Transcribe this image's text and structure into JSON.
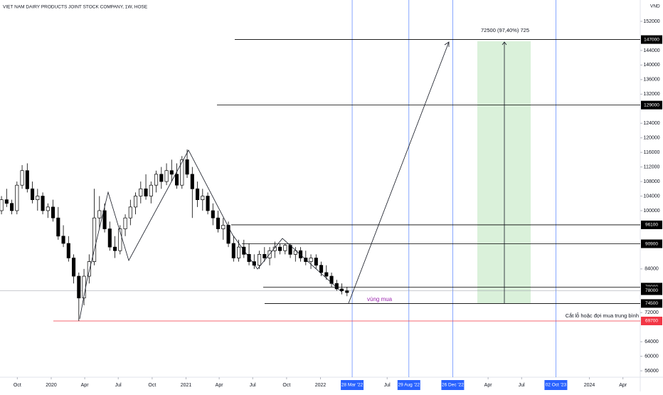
{
  "chart_data": {
    "type": "candlestick",
    "title": "VIET NAM DAIRY PRODUCTS JOINT STOCK COMPANY, 1W, HOSE",
    "currency": "VND",
    "up_color": "#ffffff",
    "down_color": "#000000",
    "xlim": [
      "2019-08-15",
      "2024-05-18"
    ],
    "ylim": [
      54250,
      157865
    ],
    "yticks": [
      152000,
      144000,
      140000,
      136000,
      132000,
      124000,
      120000,
      116000,
      112000,
      108000,
      104000,
      100000,
      84000,
      72000,
      64000,
      60000,
      56000
    ],
    "xticks": [
      {
        "value": "2019-10-01",
        "label": "Oct"
      },
      {
        "value": "2020-01-01",
        "label": "2020"
      },
      {
        "value": "2020-04-01",
        "label": "Apr"
      },
      {
        "value": "2020-07-01",
        "label": "Jul"
      },
      {
        "value": "2020-10-01",
        "label": "Oct"
      },
      {
        "value": "2021-01-01",
        "label": "2021"
      },
      {
        "value": "2021-04-01",
        "label": "Apr"
      },
      {
        "value": "2021-07-01",
        "label": "Jul"
      },
      {
        "value": "2021-10-01",
        "label": "Oct"
      },
      {
        "value": "2022-01-01",
        "label": "2022"
      },
      {
        "value": "2022-07-01",
        "label": "Jul"
      },
      {
        "value": "2023-04-01",
        "label": "Apr"
      },
      {
        "value": "2023-07-01",
        "label": "Jul"
      },
      {
        "value": "2024-01-01",
        "label": "2024"
      },
      {
        "value": "2024-04-01",
        "label": "Apr"
      }
    ],
    "date_markers": [
      {
        "value": "2022-03-28",
        "label": "28 Mar '22"
      },
      {
        "value": "2022-08-29",
        "label": "29 Aug '22"
      },
      {
        "value": "2022-12-26",
        "label": "26 Dec '22"
      },
      {
        "value": "2023-10-02",
        "label": "02 Oct '23"
      }
    ],
    "levels": [
      {
        "value": 147000,
        "color": "#000000"
      },
      {
        "value": 129000,
        "color": "#000000"
      },
      {
        "value": 96100,
        "color": "#000000"
      },
      {
        "value": 90900,
        "color": "#000000"
      },
      {
        "value": 79000,
        "color": "#000000"
      },
      {
        "value": 78000,
        "color": "#000000"
      },
      {
        "value": 74500,
        "color": "#000000"
      },
      {
        "value": 69700,
        "color": "#f23645"
      }
    ],
    "annotations": {
      "target": "72500 (97,40%) 725",
      "buy_zone": "vùng mua",
      "stop_loss": "Cắt lỗ hoặc đợi mua trung bình"
    },
    "candles": [
      [
        "2019-08-19",
        100000,
        104000,
        99000,
        103000
      ],
      [
        "2019-09-02",
        103000,
        106000,
        101000,
        102000
      ],
      [
        "2019-09-16",
        102000,
        103000,
        99000,
        100000
      ],
      [
        "2019-09-30",
        100000,
        108000,
        99000,
        107000
      ],
      [
        "2019-10-14",
        107000,
        112500,
        106000,
        111000
      ],
      [
        "2019-10-28",
        111000,
        113000,
        105000,
        106000
      ],
      [
        "2019-11-11",
        106000,
        108000,
        102000,
        103000
      ],
      [
        "2019-11-25",
        103000,
        106000,
        100000,
        104000
      ],
      [
        "2019-12-09",
        104000,
        105000,
        99000,
        100000
      ],
      [
        "2019-12-23",
        100000,
        102000,
        98000,
        101000
      ],
      [
        "2020-01-06",
        101000,
        103000,
        97000,
        98000
      ],
      [
        "2020-01-20",
        98000,
        101000,
        92000,
        93000
      ],
      [
        "2020-02-03",
        93000,
        96000,
        90000,
        91000
      ],
      [
        "2020-02-17",
        91000,
        93000,
        86000,
        87000
      ],
      [
        "2020-03-02",
        87000,
        88000,
        80000,
        82000
      ],
      [
        "2020-03-16",
        82000,
        83000,
        69700,
        76000
      ],
      [
        "2020-03-30",
        76000,
        84000,
        74000,
        82000
      ],
      [
        "2020-04-13",
        82000,
        88000,
        80000,
        86000
      ],
      [
        "2020-04-27",
        86000,
        106000,
        85000,
        98000
      ],
      [
        "2020-05-11",
        98000,
        104000,
        95000,
        100000
      ],
      [
        "2020-05-25",
        100000,
        102000,
        94000,
        95000
      ],
      [
        "2020-06-08",
        95000,
        97000,
        89000,
        90000
      ],
      [
        "2020-06-22",
        90000,
        93000,
        87000,
        89000
      ],
      [
        "2020-07-06",
        89000,
        96000,
        88000,
        95000
      ],
      [
        "2020-07-20",
        95000,
        99000,
        93000,
        98000
      ],
      [
        "2020-08-03",
        98000,
        103000,
        96000,
        101000
      ],
      [
        "2020-08-17",
        101000,
        105000,
        99000,
        104000
      ],
      [
        "2020-08-31",
        104000,
        108000,
        102000,
        106000
      ],
      [
        "2020-09-14",
        106000,
        110000,
        103000,
        104000
      ],
      [
        "2020-09-28",
        104000,
        108000,
        102000,
        107000
      ],
      [
        "2020-10-12",
        107000,
        111000,
        105000,
        110000
      ],
      [
        "2020-10-26",
        110000,
        112000,
        106000,
        108000
      ],
      [
        "2020-11-09",
        108000,
        113000,
        107000,
        111000
      ],
      [
        "2020-11-23",
        111000,
        114000,
        108000,
        110000
      ],
      [
        "2020-12-07",
        110000,
        113000,
        106000,
        107000
      ],
      [
        "2020-12-21",
        107000,
        115000,
        106000,
        114000
      ],
      [
        "2021-01-04",
        114000,
        116800,
        109000,
        110000
      ],
      [
        "2021-01-18",
        110000,
        112000,
        98000,
        106000
      ],
      [
        "2021-02-01",
        106000,
        108000,
        101000,
        103000
      ],
      [
        "2021-02-15",
        103000,
        106000,
        100000,
        104000
      ],
      [
        "2021-03-01",
        104000,
        105000,
        99000,
        100000
      ],
      [
        "2021-03-15",
        100000,
        102000,
        96000,
        98000
      ],
      [
        "2021-03-29",
        98000,
        100000,
        94000,
        95000
      ],
      [
        "2021-04-12",
        95000,
        98000,
        92000,
        96000
      ],
      [
        "2021-04-26",
        96000,
        97000,
        90000,
        91000
      ],
      [
        "2021-05-10",
        91000,
        93000,
        86000,
        87000
      ],
      [
        "2021-05-24",
        87000,
        92000,
        86000,
        90000
      ],
      [
        "2021-06-07",
        90000,
        92000,
        87000,
        88000
      ],
      [
        "2021-06-21",
        88000,
        91000,
        85000,
        86000
      ],
      [
        "2021-07-05",
        86000,
        88000,
        84000,
        85000
      ],
      [
        "2021-07-19",
        85000,
        89000,
        84000,
        88000
      ],
      [
        "2021-08-02",
        88000,
        90000,
        86000,
        87000
      ],
      [
        "2021-08-16",
        87000,
        90000,
        85000,
        89000
      ],
      [
        "2021-08-30",
        89000,
        91500,
        87000,
        90000
      ],
      [
        "2021-09-13",
        90000,
        91000,
        88000,
        89000
      ],
      [
        "2021-09-27",
        89000,
        91000,
        88000,
        90500
      ],
      [
        "2021-10-11",
        90500,
        91000,
        87000,
        88000
      ],
      [
        "2021-10-25",
        88000,
        90000,
        86000,
        89000
      ],
      [
        "2021-11-08",
        89000,
        90000,
        86000,
        87000
      ],
      [
        "2021-11-22",
        87000,
        89000,
        85000,
        86000
      ],
      [
        "2021-12-06",
        86000,
        88000,
        84000,
        87000
      ],
      [
        "2021-12-20",
        87000,
        88000,
        84000,
        85000
      ],
      [
        "2022-01-03",
        85000,
        86000,
        82000,
        83000
      ],
      [
        "2022-01-17",
        83000,
        85000,
        81000,
        82000
      ],
      [
        "2022-01-31",
        82000,
        83000,
        79000,
        80000
      ],
      [
        "2022-02-14",
        80000,
        81000,
        78000,
        78500
      ],
      [
        "2022-02-28",
        78500,
        80000,
        77000,
        78000
      ],
      [
        "2022-03-14",
        78000,
        79000,
        76500,
        77500
      ]
    ]
  }
}
